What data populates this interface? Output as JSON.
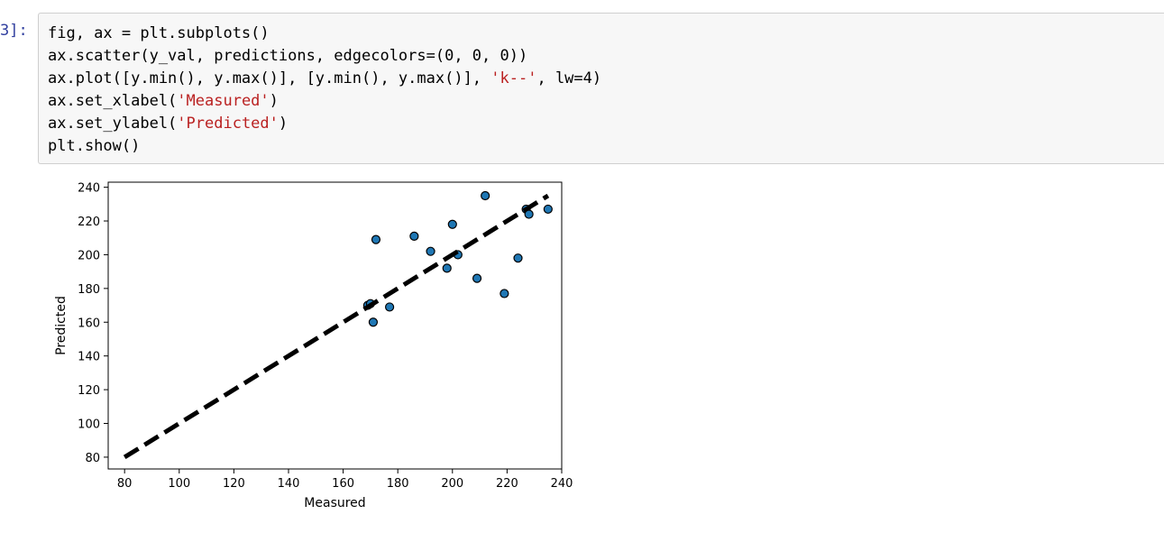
{
  "cell": {
    "prompt": "3]:",
    "code_lines": [
      [
        {
          "t": "fig, ax = plt.subplots()"
        }
      ],
      [
        {
          "t": "ax.scatter(y_val, predictions, edgecolors=(0, 0, 0))"
        }
      ],
      [
        {
          "t": "ax.plot([y.min(), y.max()], [y.min(), y.max()], "
        },
        {
          "t": "'k--'",
          "c": "str"
        },
        {
          "t": ", lw=4)"
        }
      ],
      [
        {
          "t": "ax.set_xlabel("
        },
        {
          "t": "'Measured'",
          "c": "str"
        },
        {
          "t": ")"
        }
      ],
      [
        {
          "t": "ax.set_ylabel("
        },
        {
          "t": "'Predicted'",
          "c": "str"
        },
        {
          "t": ")"
        }
      ],
      [
        {
          "t": "plt.show()"
        }
      ]
    ]
  },
  "chart_data": {
    "type": "scatter",
    "title": "",
    "xlabel": "Measured",
    "ylabel": "Predicted",
    "xlim": [
      74,
      240
    ],
    "ylim": [
      73,
      243
    ],
    "xticks": [
      80,
      100,
      120,
      140,
      160,
      180,
      200,
      220,
      240
    ],
    "yticks": [
      80,
      100,
      120,
      140,
      160,
      180,
      200,
      220,
      240
    ],
    "grid": false,
    "series": [
      {
        "marker_color": "#1f77b4",
        "edge_color": "#000000",
        "points": [
          {
            "x": 169,
            "y": 170
          },
          {
            "x": 170,
            "y": 171
          },
          {
            "x": 171,
            "y": 160
          },
          {
            "x": 172,
            "y": 209
          },
          {
            "x": 177,
            "y": 169
          },
          {
            "x": 186,
            "y": 211
          },
          {
            "x": 192,
            "y": 202
          },
          {
            "x": 198,
            "y": 192
          },
          {
            "x": 200,
            "y": 218
          },
          {
            "x": 202,
            "y": 200
          },
          {
            "x": 209,
            "y": 186
          },
          {
            "x": 212,
            "y": 235
          },
          {
            "x": 219,
            "y": 177
          },
          {
            "x": 224,
            "y": 198
          },
          {
            "x": 227,
            "y": 227
          },
          {
            "x": 228,
            "y": 224
          },
          {
            "x": 235,
            "y": 227
          }
        ]
      }
    ],
    "reference_line": {
      "x": [
        80,
        235
      ],
      "y": [
        80,
        235
      ],
      "color": "#000000",
      "style": "dashed"
    }
  }
}
